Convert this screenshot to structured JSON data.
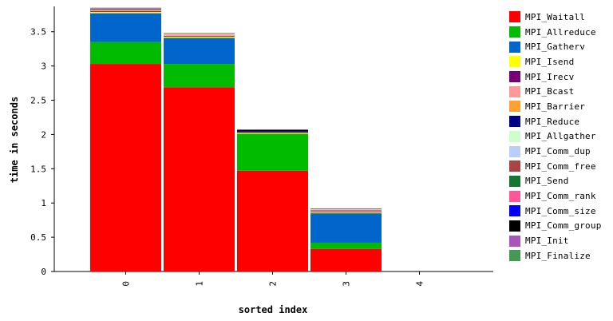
{
  "chart_data": {
    "type": "bar",
    "stacked": true,
    "xlabel": "sorted index",
    "ylabel": "time in seconds",
    "ylim": [
      0,
      3.87
    ],
    "y_ticks": [
      0,
      0.5,
      1,
      1.5,
      2,
      2.5,
      3,
      3.5
    ],
    "y_tick_labels": [
      "0",
      "0.5",
      "1",
      "1.5",
      "2",
      "2.5",
      "3",
      "3.5"
    ],
    "categories": [
      "0",
      "1",
      "2",
      "3",
      "4"
    ],
    "legend_position": "right",
    "series": [
      {
        "name": "MPI_Waitall",
        "color": "#ff0000",
        "values": [
          3.03,
          2.69,
          1.47,
          0.33,
          0
        ]
      },
      {
        "name": "MPI_Allreduce",
        "color": "#00bb00",
        "values": [
          0.32,
          0.34,
          0.54,
          0.09,
          0
        ]
      },
      {
        "name": "MPI_Gatherv",
        "color": "#0066cc",
        "values": [
          0.42,
          0.38,
          0.0,
          0.43,
          0
        ]
      },
      {
        "name": "MPI_Isend",
        "color": "#ffff00",
        "values": [
          0.02,
          0.02,
          0.015,
          0.015,
          0
        ]
      },
      {
        "name": "MPI_Irecv",
        "color": "#770077",
        "values": [
          0.01,
          0.01,
          0.01,
          0.01,
          0
        ]
      },
      {
        "name": "MPI_Bcast",
        "color": "#ff9999",
        "values": [
          0.01,
          0.01,
          0.0,
          0.01,
          0
        ]
      },
      {
        "name": "MPI_Barrier",
        "color": "#ffa033",
        "values": [
          0.01,
          0.01,
          0.0,
          0.01,
          0
        ]
      },
      {
        "name": "MPI_Reduce",
        "color": "#000088",
        "values": [
          0.01,
          0.0,
          0.015,
          0.005,
          0
        ]
      },
      {
        "name": "MPI_Allgather",
        "color": "#ccffcc",
        "values": [
          0.005,
          0.005,
          0.0,
          0.005,
          0
        ]
      },
      {
        "name": "MPI_Comm_dup",
        "color": "#bbccff",
        "values": [
          0.005,
          0.005,
          0.0,
          0.005,
          0
        ]
      },
      {
        "name": "MPI_Comm_free",
        "color": "#aa4444",
        "values": [
          0.01,
          0.01,
          0.0,
          0.01,
          0
        ]
      },
      {
        "name": "MPI_Send",
        "color": "#117733",
        "values": [
          0.0,
          0.0,
          0.0,
          0.0,
          0
        ]
      },
      {
        "name": "MPI_Comm_rank",
        "color": "#ff5599",
        "values": [
          0.0,
          0.0,
          0.0,
          0.0,
          0
        ]
      },
      {
        "name": "MPI_Comm_size",
        "color": "#0000ff",
        "values": [
          0.0,
          0.0,
          0.0,
          0.0,
          0
        ]
      },
      {
        "name": "MPI_Comm_group",
        "color": "#000000",
        "values": [
          0.0,
          0.0,
          0.02,
          0.0,
          0
        ]
      },
      {
        "name": "MPI_Init",
        "color": "#aa55bb",
        "values": [
          0.0,
          0.0,
          0.0,
          0.0,
          0
        ]
      },
      {
        "name": "MPI_Finalize",
        "color": "#449955",
        "values": [
          0.0,
          0.0,
          0.0,
          0.0,
          0
        ]
      }
    ]
  }
}
